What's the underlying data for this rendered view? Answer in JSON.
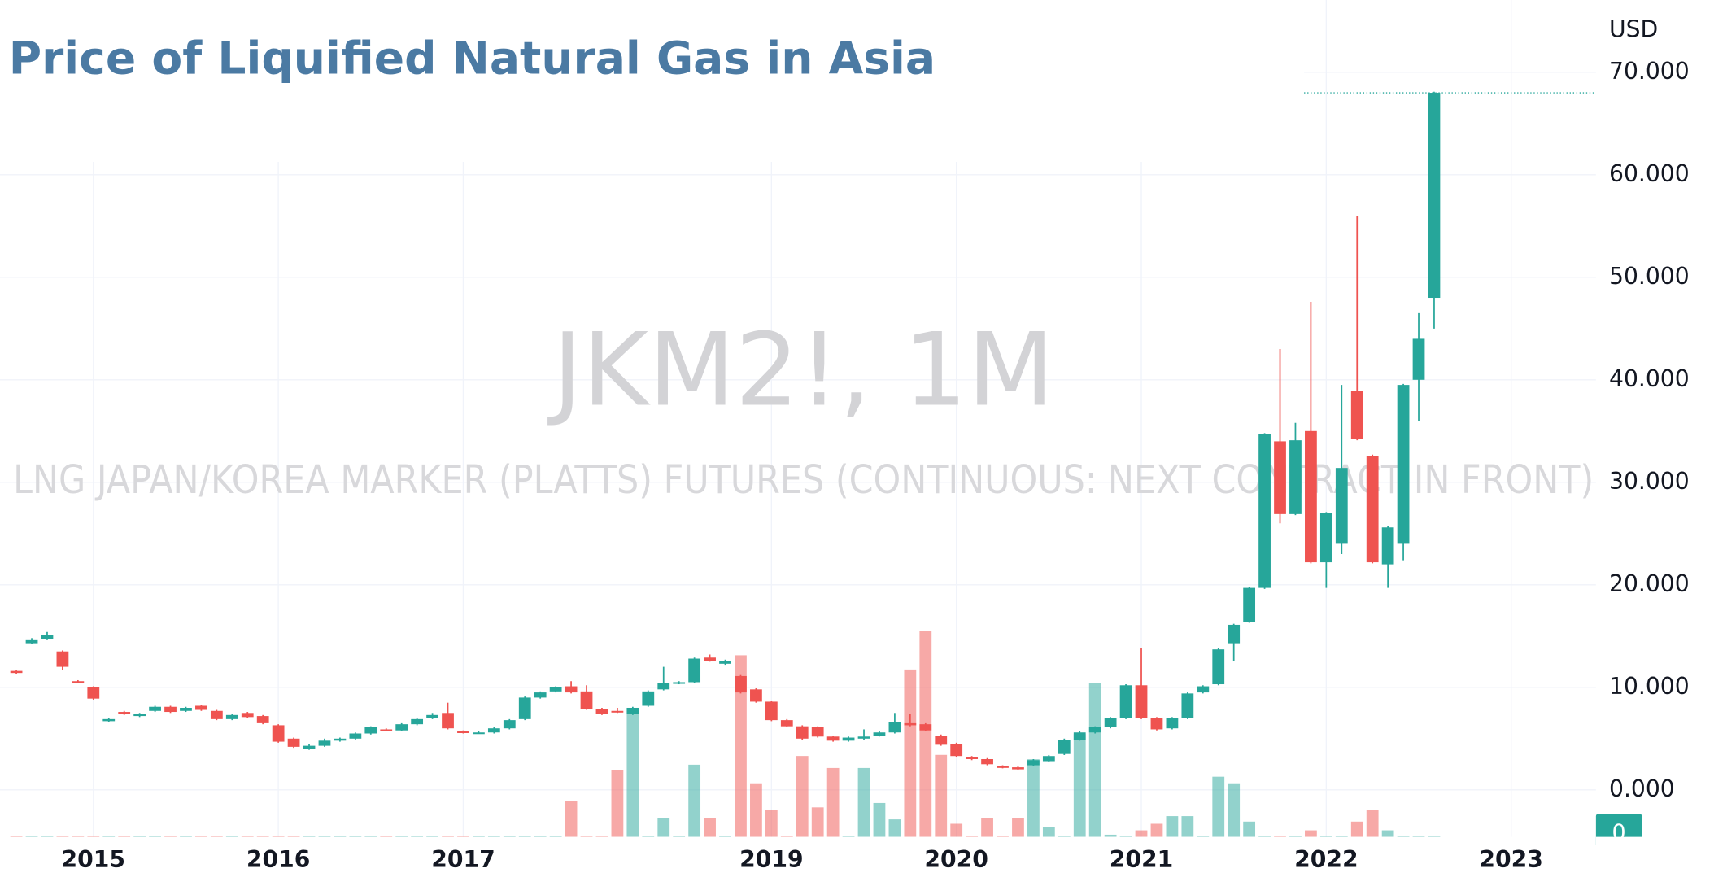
{
  "chart_data": {
    "type": "candlestick",
    "title": "Price of Liquified Natural Gas in Asia",
    "watermark": "JKM2!, 1M",
    "watermark_subtitle": "LNG JAPAN/KOREA MARKER (PLATTS) FUTURES (CONTINUOUS: NEXT CONTRACT IN FRONT)",
    "currency_label": "USD",
    "volume_axis_label": "0",
    "up_color": "#26a69a",
    "down_color": "#ef5350",
    "categories": [
      null,
      null,
      null,
      null,
      null,
      null,
      null,
      null,
      null,
      null,
      null,
      null,
      null,
      null,
      null,
      null,
      null,
      null,
      null,
      null,
      null,
      null,
      null,
      null,
      null,
      null,
      null,
      null,
      null,
      null,
      null,
      null,
      null,
      null,
      null,
      null,
      null,
      null,
      null,
      null,
      null,
      null,
      null,
      null,
      null,
      null,
      null,
      null,
      null,
      null,
      null,
      null,
      null,
      null,
      null,
      null,
      null,
      null,
      null,
      null,
      null,
      null,
      null,
      null,
      null,
      null,
      null,
      null,
      null,
      null,
      null,
      null,
      null,
      null,
      null,
      null,
      null,
      null,
      null,
      null,
      null,
      null,
      null,
      null,
      null,
      null,
      null,
      null,
      null,
      null,
      null,
      null,
      null
    ],
    "open": [
      11.6,
      14.3,
      14.7,
      13.5,
      10.6,
      10.0,
      6.7,
      7.6,
      7.2,
      7.7,
      8.1,
      7.7,
      8.2,
      7.7,
      6.9,
      7.5,
      7.2,
      6.3,
      5.0,
      4.0,
      4.3,
      4.8,
      5.0,
      5.5,
      5.9,
      5.8,
      6.4,
      7.0,
      7.5,
      5.7,
      5.6,
      5.6,
      6.0,
      6.9,
      9.0,
      9.6,
      10.1,
      9.6,
      7.9,
      7.7,
      7.4,
      8.2,
      9.8,
      10.4,
      10.5,
      12.9,
      12.3,
      11.1,
      9.8,
      8.6,
      6.8,
      6.2,
      6.1,
      5.2,
      4.8,
      5.0,
      5.3,
      5.6,
      6.5,
      6.4,
      5.3,
      4.5,
      3.2,
      3.0,
      2.3,
      2.2,
      2.4,
      2.8,
      3.5,
      4.9,
      5.6,
      6.1,
      7.0,
      10.2,
      7.0,
      6.0,
      7.0,
      9.5,
      10.3,
      14.3,
      16.4,
      19.7,
      34.0,
      26.9,
      35.0,
      22.2,
      24.0,
      38.9,
      32.6,
      22.0,
      24.0,
      40.0,
      48.0
    ],
    "close": [
      11.4,
      14.6,
      15.1,
      12.0,
      10.5,
      8.9,
      6.9,
      7.4,
      7.4,
      8.1,
      7.6,
      8.0,
      7.8,
      6.9,
      7.3,
      7.1,
      6.5,
      4.7,
      4.2,
      4.3,
      4.8,
      5.0,
      5.5,
      6.1,
      5.8,
      6.4,
      6.9,
      7.3,
      6.0,
      5.6,
      5.6,
      6.0,
      6.8,
      9.0,
      9.5,
      10.0,
      9.5,
      7.9,
      7.4,
      7.6,
      8.0,
      9.6,
      10.4,
      10.5,
      12.8,
      12.6,
      12.6,
      9.5,
      8.6,
      6.8,
      6.2,
      5.0,
      5.2,
      4.8,
      5.1,
      5.2,
      5.6,
      6.6,
      6.3,
      5.8,
      4.4,
      3.3,
      3.0,
      2.5,
      2.2,
      2.0,
      2.9,
      3.3,
      4.9,
      5.6,
      6.1,
      7.0,
      10.2,
      7.0,
      5.9,
      7.0,
      9.4,
      10.1,
      13.7,
      16.1,
      19.7,
      34.7,
      26.9,
      34.1,
      22.2,
      27.0,
      31.4,
      34.2,
      22.2,
      25.6,
      39.5,
      44.0,
      68.0
    ],
    "high": [
      11.7,
      14.8,
      15.4,
      13.6,
      10.7,
      10.1,
      7.0,
      7.7,
      7.5,
      8.2,
      8.2,
      8.1,
      8.3,
      7.8,
      7.4,
      7.6,
      7.3,
      6.4,
      5.1,
      4.5,
      5.0,
      5.1,
      5.6,
      6.2,
      6.0,
      6.5,
      7.0,
      7.5,
      8.5,
      5.8,
      5.7,
      6.1,
      6.9,
      9.1,
      9.6,
      10.1,
      10.6,
      10.2,
      8.0,
      8.0,
      8.1,
      9.7,
      12.0,
      10.6,
      12.9,
      13.2,
      12.7,
      11.2,
      9.9,
      8.7,
      6.9,
      6.3,
      6.2,
      5.3,
      5.2,
      5.9,
      5.7,
      7.5,
      7.4,
      6.5,
      5.4,
      4.6,
      3.3,
      3.1,
      2.4,
      2.3,
      3.0,
      3.4,
      5.0,
      5.7,
      6.2,
      7.1,
      10.3,
      13.8,
      7.1,
      7.1,
      9.5,
      10.2,
      13.8,
      16.2,
      19.8,
      34.8,
      43.0,
      35.8,
      47.6,
      27.1,
      39.5,
      56.0,
      32.7,
      25.7,
      39.6,
      46.5,
      68.1
    ],
    "low": [
      11.3,
      14.2,
      14.6,
      11.7,
      10.4,
      8.8,
      6.6,
      7.3,
      7.1,
      7.6,
      7.5,
      7.6,
      7.7,
      6.8,
      6.8,
      7.0,
      6.4,
      4.6,
      4.1,
      3.9,
      4.2,
      4.7,
      4.9,
      5.4,
      5.7,
      5.7,
      6.3,
      6.9,
      5.9,
      5.5,
      5.5,
      5.5,
      5.9,
      6.8,
      8.9,
      9.5,
      9.4,
      7.8,
      7.3,
      7.5,
      7.3,
      8.1,
      9.7,
      10.3,
      10.4,
      12.5,
      12.2,
      9.4,
      8.5,
      6.7,
      6.1,
      4.9,
      5.1,
      4.7,
      4.7,
      4.9,
      5.2,
      5.5,
      6.2,
      5.7,
      4.3,
      3.2,
      2.9,
      2.4,
      2.1,
      1.9,
      2.3,
      2.7,
      3.4,
      4.8,
      5.5,
      6.0,
      6.9,
      6.9,
      5.8,
      5.9,
      6.9,
      9.4,
      10.2,
      12.6,
      16.3,
      19.6,
      26.0,
      26.8,
      22.1,
      19.7,
      23.0,
      34.1,
      22.1,
      19.7,
      22.4,
      36.0,
      45.0
    ],
    "volume": [
      1,
      1,
      1,
      1,
      1,
      1,
      1,
      1,
      1,
      1,
      1,
      1,
      1,
      1,
      1,
      1,
      1,
      1,
      1,
      1,
      1,
      1,
      1,
      1,
      1,
      1,
      1,
      1,
      1,
      1,
      1,
      1,
      1,
      1,
      1,
      1,
      33,
      1,
      1,
      61,
      118,
      1,
      17,
      1,
      66,
      17,
      1,
      166,
      49,
      25,
      1,
      74,
      27,
      63,
      1,
      63,
      31,
      16,
      153,
      188,
      75,
      12,
      1,
      17,
      1,
      17,
      71,
      9,
      1,
      94,
      141,
      2,
      1,
      6,
      12,
      19,
      19,
      1,
      55,
      49,
      14,
      1,
      1,
      1,
      6,
      1,
      1,
      14,
      25,
      6,
      1,
      1,
      1
    ],
    "volume_lim": [
      0,
      765
    ],
    "xlim": [
      -1.06,
      102.5
    ],
    "xticks": [
      {
        "value": 5,
        "label": "2015"
      },
      {
        "value": 17,
        "label": "2016"
      },
      {
        "value": 29,
        "label": "2017"
      },
      {
        "value": 49,
        "label": "2019"
      },
      {
        "value": 61,
        "label": "2020"
      },
      {
        "value": 73,
        "label": "2021"
      },
      {
        "value": 85,
        "label": "2022"
      },
      {
        "value": 97,
        "label": "2023"
      }
    ],
    "ylim": [
      -4.59,
      77.05
    ],
    "yticks": [
      {
        "value": 0,
        "label": "0.000"
      },
      {
        "value": 10,
        "label": "10.000"
      },
      {
        "value": 20,
        "label": "20.000"
      },
      {
        "value": 30,
        "label": "30.000"
      },
      {
        "value": 40,
        "label": "40.000"
      },
      {
        "value": 50,
        "label": "50.000"
      },
      {
        "value": 60,
        "label": "60.000"
      },
      {
        "value": 70,
        "label": "70.000"
      }
    ],
    "grid": true
  }
}
